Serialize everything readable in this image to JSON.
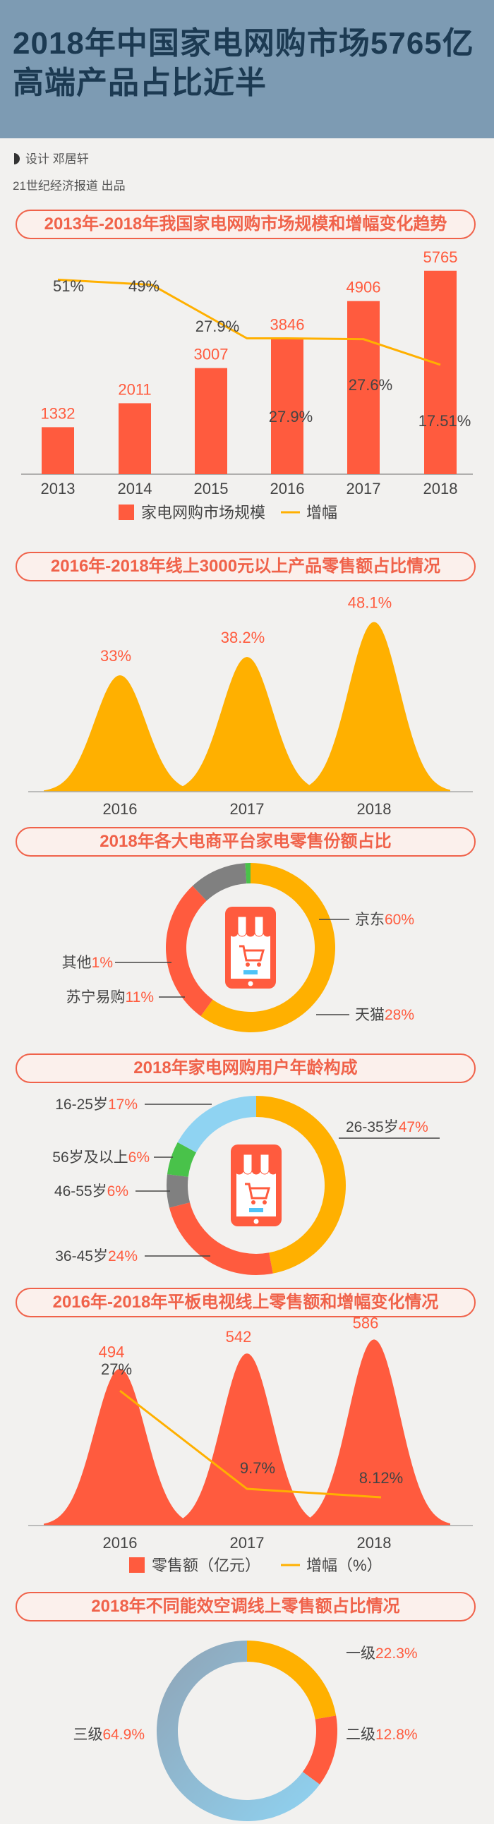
{
  "header": {
    "title_line1": "2018年中国家电网购市场5765亿",
    "title_line2": "高端产品占比近半",
    "design_credit": "设计  邓居轩",
    "publisher_credit": "21世纪经济报道  出品"
  },
  "colors": {
    "red": "#ff5b3e",
    "orange": "#ffb000",
    "green": "#49c24a",
    "gray": "#808080",
    "blue": "#8fd3f2",
    "text": "#444444"
  },
  "chart_data": [
    {
      "type": "bar",
      "title": "2013年-2018年我国家电网购市场规模和增幅变化趋势",
      "categories": [
        "2013",
        "2014",
        "2015",
        "2016",
        "2017",
        "2018"
      ],
      "series": [
        {
          "name": "家电网购市场规模",
          "values": [
            1332,
            2011,
            3007,
            3846,
            4906,
            5765
          ],
          "labels": [
            "1332",
            "2011",
            "3007",
            "3846",
            "4906",
            "5765"
          ],
          "kind": "bar"
        },
        {
          "name": "增幅",
          "values": [
            51,
            49,
            27.9,
            27.9,
            27.6,
            17.51
          ],
          "labels": [
            "51%",
            "49%",
            "27.9%",
            "27.9%",
            "27.6%",
            "17.51%"
          ],
          "kind": "line"
        }
      ],
      "legend": "bottom"
    },
    {
      "type": "area",
      "title": "2016年-2018年线上3000元以上产品零售额占比情况",
      "categories": [
        "2016",
        "2017",
        "2018"
      ],
      "values": [
        33,
        38.2,
        48.1
      ],
      "labels": [
        "33%",
        "38.2%",
        "48.1%"
      ]
    },
    {
      "type": "pie",
      "title": "2018年各大电商平台家电零售份额占比",
      "slices": [
        {
          "name": "京东",
          "value": 60,
          "label": "60%"
        },
        {
          "name": "天猫",
          "value": 28,
          "label": "28%"
        },
        {
          "name": "苏宁易购",
          "value": 11,
          "label": "11%"
        },
        {
          "name": "其他",
          "value": 1,
          "label": "1%"
        }
      ]
    },
    {
      "type": "pie",
      "title": "2018年家电网购用户年龄构成",
      "slices": [
        {
          "name": "26-35岁",
          "value": 47,
          "label": "47%"
        },
        {
          "name": "36-45岁",
          "value": 24,
          "label": "24%"
        },
        {
          "name": "46-55岁",
          "value": 6,
          "label": "6%"
        },
        {
          "name": "56岁及以上",
          "value": 6,
          "label": "6%"
        },
        {
          "name": "16-25岁",
          "value": 17,
          "label": "17%"
        }
      ]
    },
    {
      "type": "area",
      "title": "2016年-2018年平板电视线上零售额和增幅变化情况",
      "categories": [
        "2016",
        "2017",
        "2018"
      ],
      "series": [
        {
          "name": "零售额（亿元）",
          "values": [
            494,
            542,
            586
          ],
          "labels": [
            "494",
            "542",
            "586"
          ],
          "kind": "area"
        },
        {
          "name": "增幅（%）",
          "values": [
            27,
            9.7,
            8.12
          ],
          "labels": [
            "27%",
            "9.7%",
            "8.12%"
          ],
          "kind": "line"
        }
      ],
      "legend": "bottom"
    },
    {
      "type": "pie",
      "title": "2018年不同能效空调线上零售额占比情况",
      "slices": [
        {
          "name": "一级",
          "value": 22.3,
          "label": "22.3%"
        },
        {
          "name": "二级",
          "value": 12.8,
          "label": "12.8%"
        },
        {
          "name": "三级",
          "value": 64.9,
          "label": "64.9%"
        }
      ]
    }
  ]
}
